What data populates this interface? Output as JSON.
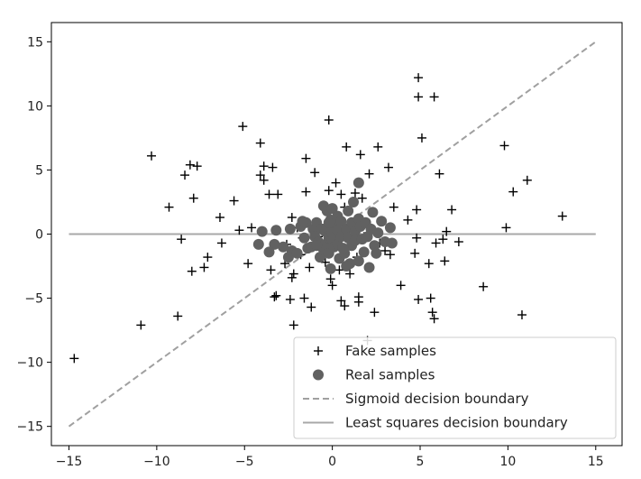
{
  "chart_data": {
    "type": "scatter",
    "title": "",
    "xlabel": "",
    "ylabel": "",
    "xlim": [
      -16,
      16.5
    ],
    "ylim": [
      -16.5,
      16.5
    ],
    "xticks": [
      -15,
      -10,
      -5,
      0,
      5,
      10,
      15
    ],
    "yticks": [
      -15,
      -10,
      -5,
      0,
      5,
      10,
      15
    ],
    "xtick_labels": [
      "−15",
      "−10",
      "−5",
      "0",
      "5",
      "10",
      "15"
    ],
    "ytick_labels": [
      "−15",
      "−10",
      "−5",
      "0",
      "5",
      "10",
      "15"
    ],
    "grid": false,
    "legend_position": "bottom-right",
    "series": [
      {
        "name": "Fake samples",
        "kind": "scatter",
        "marker": "plus",
        "color": "#000000",
        "points": [
          [
            -14.7,
            -9.7
          ],
          [
            -10.9,
            -7.1
          ],
          [
            -10.3,
            6.1
          ],
          [
            -9.3,
            2.1
          ],
          [
            -8.8,
            -6.4
          ],
          [
            -8.6,
            -0.4
          ],
          [
            -8.4,
            4.6
          ],
          [
            -8.1,
            5.4
          ],
          [
            -8.0,
            -2.9
          ],
          [
            -7.9,
            2.8
          ],
          [
            -7.7,
            5.3
          ],
          [
            -7.3,
            -2.6
          ],
          [
            -7.1,
            -1.8
          ],
          [
            -6.4,
            1.3
          ],
          [
            -6.3,
            -0.7
          ],
          [
            -5.6,
            2.6
          ],
          [
            -5.3,
            0.3
          ],
          [
            -5.1,
            8.4
          ],
          [
            -4.8,
            -2.3
          ],
          [
            -4.6,
            0.5
          ],
          [
            -4.1,
            7.1
          ],
          [
            -4.1,
            4.6
          ],
          [
            -3.9,
            4.2
          ],
          [
            -3.9,
            5.3
          ],
          [
            -3.6,
            3.1
          ],
          [
            -3.5,
            -2.8
          ],
          [
            -3.4,
            5.2
          ],
          [
            -3.3,
            -4.9
          ],
          [
            -3.2,
            -4.8
          ],
          [
            -3.1,
            3.1
          ],
          [
            -2.7,
            -2.3
          ],
          [
            -2.6,
            -0.8
          ],
          [
            -2.4,
            -5.1
          ],
          [
            -2.3,
            -3.4
          ],
          [
            -2.3,
            1.3
          ],
          [
            -2.2,
            -3.1
          ],
          [
            -2.2,
            -7.1
          ],
          [
            -2.0,
            0.5
          ],
          [
            -1.8,
            -1.6
          ],
          [
            -1.7,
            -0.3
          ],
          [
            -1.6,
            -5.0
          ],
          [
            -1.5,
            3.3
          ],
          [
            -1.5,
            5.9
          ],
          [
            -1.3,
            -2.6
          ],
          [
            -1.2,
            -5.7
          ],
          [
            -1.0,
            4.8
          ],
          [
            -0.8,
            -0.2
          ],
          [
            -0.4,
            -2.2
          ],
          [
            -0.2,
            0.5
          ],
          [
            -0.2,
            3.4
          ],
          [
            -0.2,
            8.9
          ],
          [
            -0.1,
            -3.5
          ],
          [
            0.0,
            -4.0
          ],
          [
            0.1,
            1.3
          ],
          [
            0.2,
            4.0
          ],
          [
            0.3,
            -0.5
          ],
          [
            0.4,
            -2.8
          ],
          [
            0.5,
            3.1
          ],
          [
            0.5,
            -5.2
          ],
          [
            0.7,
            -5.6
          ],
          [
            0.7,
            2.1
          ],
          [
            0.8,
            6.8
          ],
          [
            1.0,
            -3.1
          ],
          [
            1.0,
            -0.4
          ],
          [
            1.3,
            3.2
          ],
          [
            1.4,
            -1.8
          ],
          [
            1.4,
            0.8
          ],
          [
            1.5,
            -4.9
          ],
          [
            1.5,
            -5.3
          ],
          [
            1.6,
            6.2
          ],
          [
            1.7,
            2.8
          ],
          [
            1.8,
            -0.2
          ],
          [
            2.0,
            -8.3
          ],
          [
            2.0,
            0.7
          ],
          [
            2.1,
            4.7
          ],
          [
            2.4,
            -6.1
          ],
          [
            2.6,
            6.8
          ],
          [
            2.7,
            -0.7
          ],
          [
            3.0,
            -1.3
          ],
          [
            3.2,
            5.2
          ],
          [
            3.3,
            -1.6
          ],
          [
            3.5,
            2.1
          ],
          [
            3.9,
            -4.0
          ],
          [
            4.3,
            1.1
          ],
          [
            4.7,
            -1.5
          ],
          [
            4.8,
            1.9
          ],
          [
            4.8,
            -0.3
          ],
          [
            4.9,
            12.2
          ],
          [
            4.9,
            10.7
          ],
          [
            4.9,
            -5.1
          ],
          [
            5.1,
            7.5
          ],
          [
            5.5,
            -2.3
          ],
          [
            5.6,
            -5.0
          ],
          [
            5.7,
            -6.1
          ],
          [
            5.8,
            -6.6
          ],
          [
            5.8,
            10.7
          ],
          [
            5.9,
            -0.7
          ],
          [
            6.1,
            4.7
          ],
          [
            6.3,
            -0.4
          ],
          [
            6.4,
            -2.1
          ],
          [
            6.5,
            0.2
          ],
          [
            6.8,
            1.9
          ],
          [
            7.2,
            -0.6
          ],
          [
            8.6,
            -4.1
          ],
          [
            9.8,
            6.9
          ],
          [
            9.9,
            0.5
          ],
          [
            10.3,
            3.3
          ],
          [
            10.8,
            -6.3
          ],
          [
            11.1,
            4.2
          ],
          [
            13.1,
            1.4
          ]
        ]
      },
      {
        "name": "Real samples",
        "kind": "scatter",
        "marker": "circle",
        "color": "#616161",
        "points": [
          [
            -4.0,
            0.2
          ],
          [
            -4.2,
            -0.8
          ],
          [
            -3.3,
            -0.8
          ],
          [
            -3.2,
            0.3
          ],
          [
            -2.5,
            -1.8
          ],
          [
            -2.4,
            0.4
          ],
          [
            -2.3,
            -1.3
          ],
          [
            -2.0,
            -1.5
          ],
          [
            -1.8,
            0.6
          ],
          [
            -1.6,
            -0.3
          ],
          [
            -1.5,
            0.9
          ],
          [
            -1.4,
            -1.1
          ],
          [
            -1.2,
            -1.0
          ],
          [
            -1.1,
            0.4
          ],
          [
            -1.0,
            -0.2
          ],
          [
            -0.9,
            0.9
          ],
          [
            -0.8,
            -0.6
          ],
          [
            -0.7,
            -1.8
          ],
          [
            -0.6,
            0.4
          ],
          [
            -0.5,
            -1.2
          ],
          [
            -0.5,
            2.2
          ],
          [
            -0.4,
            0.2
          ],
          [
            -0.4,
            -0.8
          ],
          [
            -0.3,
            0.5
          ],
          [
            -0.3,
            1.8
          ],
          [
            -0.2,
            -1.5
          ],
          [
            -0.2,
            -0.3
          ],
          [
            -0.1,
            -2.7
          ],
          [
            -0.1,
            1.1
          ],
          [
            0.0,
            -0.4
          ],
          [
            0.0,
            0.1
          ],
          [
            0.0,
            2.0
          ],
          [
            0.1,
            -1.0
          ],
          [
            0.2,
            0.8
          ],
          [
            0.3,
            -0.8
          ],
          [
            0.3,
            0.3
          ],
          [
            0.3,
            1.4
          ],
          [
            0.4,
            -1.9
          ],
          [
            0.5,
            -0.2
          ],
          [
            0.5,
            1.0
          ],
          [
            0.7,
            -1.5
          ],
          [
            0.8,
            0.4
          ],
          [
            0.9,
            -0.3
          ],
          [
            0.9,
            1.8
          ],
          [
            1.0,
            -2.3
          ],
          [
            1.1,
            0.9
          ],
          [
            1.1,
            -0.9
          ],
          [
            1.3,
            0.2
          ],
          [
            1.3,
            -0.5
          ],
          [
            1.5,
            1.2
          ],
          [
            1.5,
            -2.1
          ],
          [
            1.6,
            0.6
          ],
          [
            1.7,
            -0.4
          ],
          [
            1.8,
            -1.4
          ],
          [
            1.9,
            0.9
          ],
          [
            2.0,
            -0.2
          ],
          [
            2.1,
            -2.6
          ],
          [
            2.2,
            0.4
          ],
          [
            2.3,
            1.7
          ],
          [
            2.4,
            -0.9
          ],
          [
            2.5,
            -1.5
          ],
          [
            2.6,
            0.1
          ],
          [
            2.8,
            1.0
          ],
          [
            3.0,
            -0.6
          ],
          [
            3.3,
            0.5
          ],
          [
            3.4,
            -0.7
          ],
          [
            -1.7,
            1.0
          ],
          [
            -2.8,
            -1.0
          ],
          [
            -3.6,
            -1.4
          ],
          [
            1.5,
            4.0
          ],
          [
            0.6,
            -1.1
          ],
          [
            -0.9,
            -0.9
          ],
          [
            -0.2,
            0.9
          ],
          [
            0.8,
            -2.5
          ],
          [
            1.2,
            2.5
          ]
        ]
      },
      {
        "name": "Sigmoid decision boundary",
        "kind": "line",
        "style": "dashed",
        "color": "#a0a0a0",
        "x": [
          -15,
          15
        ],
        "y": [
          -15,
          15
        ]
      },
      {
        "name": "Least squares decision boundary",
        "kind": "line",
        "style": "solid",
        "color": "#a8a8a8",
        "x": [
          -15,
          15
        ],
        "y": [
          0,
          0
        ]
      }
    ]
  }
}
